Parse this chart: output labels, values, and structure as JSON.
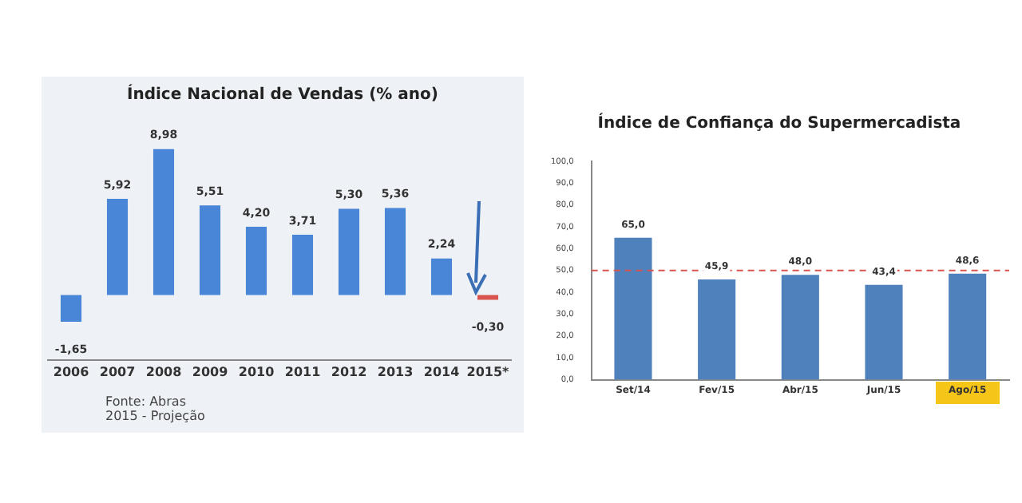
{
  "chart_data": [
    {
      "type": "bar",
      "title": "Índice Nacional de Vendas (% ano)",
      "categories": [
        "2006",
        "2007",
        "2008",
        "2009",
        "2010",
        "2011",
        "2012",
        "2013",
        "2014",
        "2015*"
      ],
      "values": [
        -1.65,
        5.92,
        8.98,
        5.51,
        4.2,
        3.71,
        5.3,
        5.36,
        2.24,
        -0.3
      ],
      "colors": [
        "#4a86d8",
        "#4a86d8",
        "#4a86d8",
        "#4a86d8",
        "#4a86d8",
        "#4a86d8",
        "#4a86d8",
        "#4a86d8",
        "#4a86d8",
        "#d9534f"
      ],
      "value_labels": [
        "-1,65",
        "5,92",
        "8,98",
        "5,51",
        "4,20",
        "3,71",
        "5,30",
        "5,36",
        "2,24",
        "-0,30"
      ],
      "tick_labels": "x",
      "annotations": [
        "Fonte: Abras",
        "2015 - Projeção"
      ],
      "grid": false,
      "legend": false
    },
    {
      "type": "bar",
      "title": "Índice de Confiança do Supermercadista",
      "categories": [
        "Set/14",
        "Fev/15",
        "Abr/15",
        "Jun/15",
        "Ago/15"
      ],
      "values": [
        65.0,
        45.9,
        48.0,
        43.4,
        48.6
      ],
      "color": "#4f81bd",
      "value_labels": [
        "65,0",
        "45,9",
        "48,0",
        "43,4",
        "48,6"
      ],
      "ylim": [
        0,
        100
      ],
      "yticks": [
        {
          "value": 0,
          "label": "0,0"
        },
        {
          "value": 10,
          "label": "10,0"
        },
        {
          "value": 20,
          "label": "20,0"
        },
        {
          "value": 30,
          "label": "30,0"
        },
        {
          "value": 40,
          "label": "40,0"
        },
        {
          "value": 50,
          "label": "50,0"
        },
        {
          "value": 60,
          "label": "60,0"
        },
        {
          "value": 70,
          "label": "70,0"
        },
        {
          "value": 80,
          "label": "80,0"
        },
        {
          "value": 90,
          "label": "90,0"
        },
        {
          "value": 100,
          "label": "100,0"
        }
      ],
      "ref_lines": [
        {
          "axis": "y",
          "value": 50,
          "color": "#d9534f",
          "line_style": "dashed"
        }
      ],
      "grid": false,
      "legend": false
    }
  ]
}
